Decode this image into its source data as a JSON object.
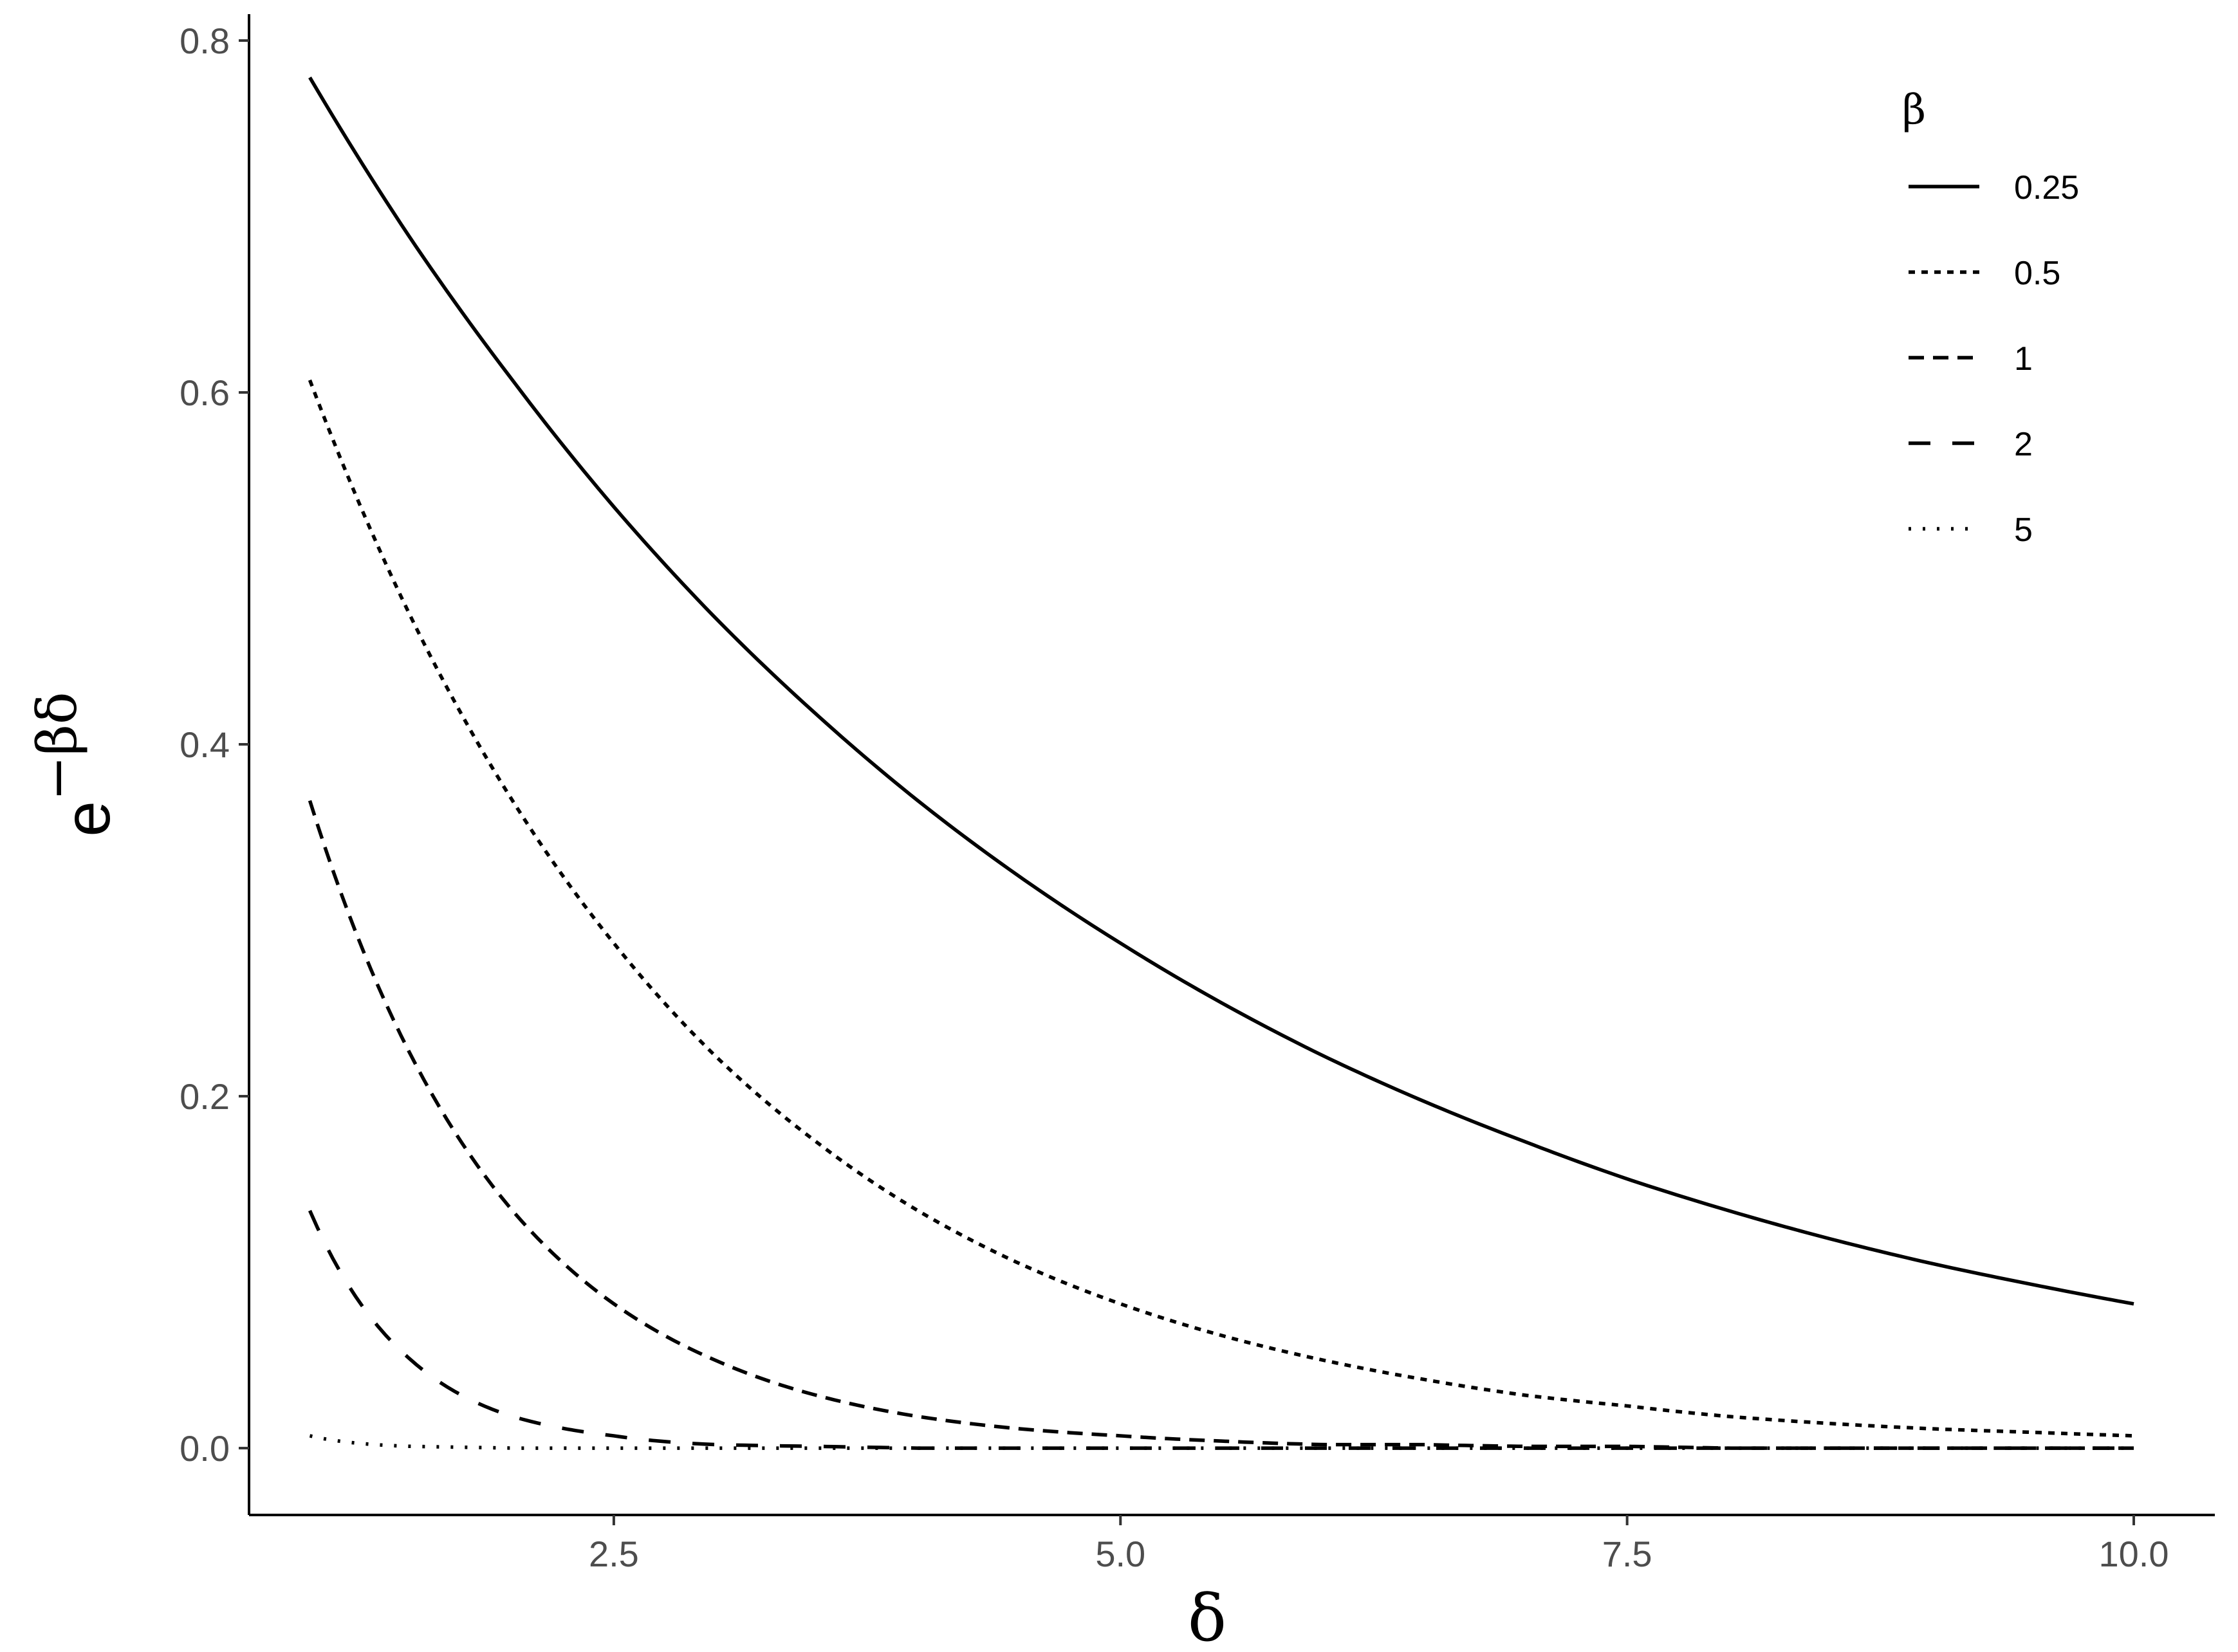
{
  "chart_data": {
    "type": "line",
    "xlabel": "δ",
    "ylabel": {
      "base": "e",
      "exponent": "−βδ"
    },
    "xlim": [
      0.7,
      10.4
    ],
    "ylim": [
      -0.038,
      0.815
    ],
    "x_ticks": [
      {
        "value": 2.5,
        "label": "2.5"
      },
      {
        "value": 5.0,
        "label": "5.0"
      },
      {
        "value": 7.5,
        "label": "7.5"
      },
      {
        "value": 10.0,
        "label": "10.0"
      }
    ],
    "y_ticks": [
      {
        "value": 0.0,
        "label": "0.0"
      },
      {
        "value": 0.2,
        "label": "0.2"
      },
      {
        "value": 0.4,
        "label": "0.4"
      },
      {
        "value": 0.6,
        "label": "0.6"
      },
      {
        "value": 0.8,
        "label": "0.8"
      }
    ],
    "grid": false,
    "legend": {
      "title": "β",
      "position": "top-right"
    },
    "series": [
      {
        "name": "0.25",
        "linetype": "solid",
        "x": [
          1,
          1.5,
          2,
          2.5,
          3,
          3.5,
          4,
          4.5,
          5,
          5.5,
          6,
          6.5,
          7,
          7.5,
          8,
          8.5,
          9,
          9.5,
          10
        ],
        "y": [
          0.779,
          0.687,
          0.607,
          0.535,
          0.472,
          0.417,
          0.368,
          0.325,
          0.287,
          0.253,
          0.223,
          0.197,
          0.174,
          0.153,
          0.135,
          0.119,
          0.105,
          0.093,
          0.082
        ]
      },
      {
        "name": "0.5",
        "linetype": "dotted",
        "x": [
          1,
          1.5,
          2,
          2.5,
          3,
          3.5,
          4,
          4.5,
          5,
          5.5,
          6,
          6.5,
          7,
          7.5,
          8,
          8.5,
          9,
          9.5,
          10
        ],
        "y": [
          0.607,
          0.472,
          0.368,
          0.287,
          0.223,
          0.174,
          0.135,
          0.105,
          0.082,
          0.064,
          0.05,
          0.039,
          0.03,
          0.024,
          0.018,
          0.014,
          0.011,
          0.009,
          0.007
        ]
      },
      {
        "name": "1",
        "linetype": "dashed",
        "x": [
          1,
          1.5,
          2,
          2.5,
          3,
          3.5,
          4,
          4.5,
          5,
          5.5,
          6,
          6.5,
          7,
          7.5,
          8,
          8.5,
          9,
          9.5,
          10
        ],
        "y": [
          0.368,
          0.223,
          0.135,
          0.082,
          0.05,
          0.03,
          0.018,
          0.011,
          0.007,
          0.004,
          0.002,
          0.002,
          0.001,
          0.001,
          0.0,
          0.0,
          0.0,
          0.0,
          0.0
        ]
      },
      {
        "name": "2",
        "linetype": "longdash",
        "x": [
          1,
          1.5,
          2,
          2.5,
          3,
          3.5,
          4,
          4.5,
          5,
          5.5,
          6,
          6.5,
          7,
          7.5,
          8,
          8.5,
          9,
          9.5,
          10
        ],
        "y": [
          0.135,
          0.05,
          0.018,
          0.007,
          0.002,
          0.001,
          0.0,
          0.0,
          0.0,
          0.0,
          0.0,
          0.0,
          0.0,
          0.0,
          0.0,
          0.0,
          0.0,
          0.0,
          0.0
        ]
      },
      {
        "name": "5",
        "linetype": "fine-dotted",
        "x": [
          1,
          1.5,
          2,
          2.5,
          3,
          3.5,
          4,
          4.5,
          5,
          5.5,
          6,
          6.5,
          7,
          7.5,
          8,
          8.5,
          9,
          9.5,
          10
        ],
        "y": [
          0.007,
          0.001,
          0.0,
          0.0,
          0.0,
          0.0,
          0.0,
          0.0,
          0.0,
          0.0,
          0.0,
          0.0,
          0.0,
          0.0,
          0.0,
          0.0,
          0.0,
          0.0,
          0.0
        ]
      }
    ]
  }
}
